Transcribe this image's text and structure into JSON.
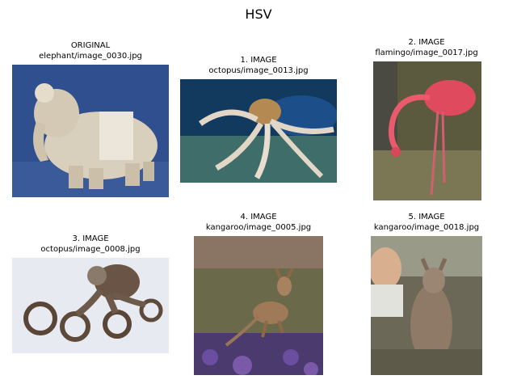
{
  "title": "HSV",
  "panels": [
    {
      "label": "ORIGINAL",
      "file": "elephant/image_0030.jpg",
      "subject": "elephant-figurine-photo"
    },
    {
      "label": "1. IMAGE",
      "file": "octopus/image_0013.jpg",
      "subject": "octopus-photo"
    },
    {
      "label": "2. IMAGE",
      "file": "flamingo/image_0017.jpg",
      "subject": "flamingo-photo"
    },
    {
      "label": "3. IMAGE",
      "file": "octopus/image_0008.jpg",
      "subject": "octopus-photo"
    },
    {
      "label": "4. IMAGE",
      "file": "kangaroo/image_0005.jpg",
      "subject": "kangaroo-photo"
    },
    {
      "label": "5. IMAGE",
      "file": "kangaroo/image_0018.jpg",
      "subject": "kangaroo-with-person-photo"
    }
  ]
}
